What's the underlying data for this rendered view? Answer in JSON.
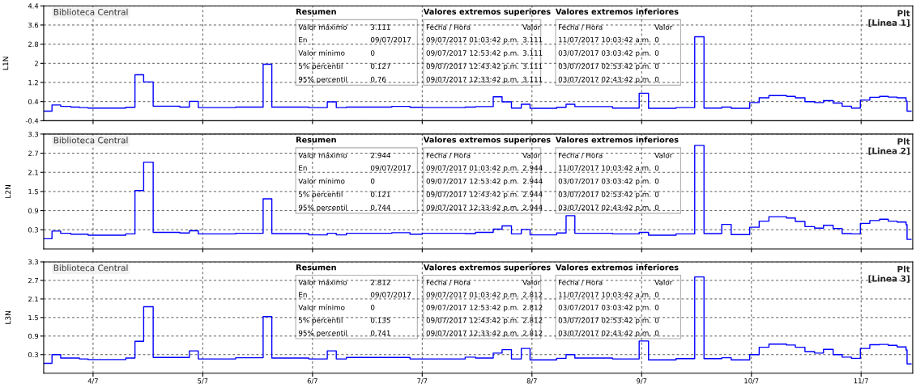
{
  "chart_data": [
    {
      "type": "step",
      "title": "Biblioteca Central",
      "subtitle": "Plt\n[Linea 1]",
      "ylabel": "L1N",
      "x": [
        "2017-07-03T13:12",
        "2017-07-03T15:01",
        "2017-07-03T16:55",
        "2017-07-03T19:08",
        "2017-07-03T21:01",
        "2017-07-03T22:55",
        "2017-07-04T07:09",
        "2017-07-04T09:10",
        "2017-07-04T11:04",
        "2017-07-04T13:09",
        "2017-07-04T18:58",
        "2017-07-04T21:04",
        "2017-07-04T23:01",
        "2017-07-05T07:12",
        "2017-07-05T13:12",
        "2017-07-05T15:06",
        "2017-07-05T23:11",
        "2017-07-06T03:14",
        "2017-07-06T05:12",
        "2017-07-06T07:25",
        "2017-07-06T17:21",
        "2017-07-06T21:20",
        "2017-07-07T00:00",
        "2017-07-07T09:24",
        "2017-07-07T11:40",
        "2017-07-07T15:32",
        "2017-07-07T17:28",
        "2017-07-07T19:31",
        "2017-07-07T21:40",
        "2017-07-07T23:35",
        "2017-07-08T05:24",
        "2017-07-08T07:28",
        "2017-07-08T09:23",
        "2017-07-08T17:38",
        "2017-07-08T23:27",
        "2017-07-09T01:30",
        "2017-07-09T07:31",
        "2017-07-09T11:36",
        "2017-07-09T13:38",
        "2017-07-09T17:31",
        "2017-07-09T19:35",
        "2017-07-09T23:38",
        "2017-07-10T01:42",
        "2017-07-10T03:50",
        "2017-07-10T07:42",
        "2017-07-10T09:37",
        "2017-07-10T11:43",
        "2017-07-10T13:49",
        "2017-07-10T15:46",
        "2017-07-10T17:53",
        "2017-07-10T19:51",
        "2017-07-10T21:53",
        "2017-07-10T23:50",
        "2017-07-11T01:54",
        "2017-07-11T04:02",
        "2017-07-11T05:57",
        "2017-07-11T07:53",
        "2017-07-11T09:50",
        "2017-07-11T10:03",
        "2017-07-11T10:55"
      ],
      "series": [
        {
          "color": "#0000ff",
          "values": [
            0.0,
            0.26,
            0.2,
            0.17,
            0.15,
            0.13,
            0.16,
            1.52,
            1.22,
            0.21,
            0.17,
            0.41,
            0.15,
            0.17,
            1.96,
            0.17,
            0.15,
            0.39,
            0.15,
            0.17,
            0.2,
            0.16,
            0.15,
            0.17,
            0.19,
            0.6,
            0.39,
            0.13,
            0.29,
            0.12,
            0.16,
            0.29,
            0.19,
            0.13,
            0.75,
            0.12,
            0.15,
            3.111,
            0.13,
            0.17,
            0.12,
            0.36,
            0.56,
            0.65,
            0.62,
            0.56,
            0.4,
            0.36,
            0.44,
            0.34,
            0.21,
            0.13,
            0.46,
            0.58,
            0.62,
            0.59,
            0.56,
            0.42,
            0.0,
            0.0
          ]
        }
      ],
      "xlim": [
        "2017-07-03T13:12",
        "2017-07-11T11:17"
      ],
      "xticks": [
        {
          "value": "2017-07-04",
          "label": null
        },
        {
          "value": "2017-07-05",
          "label": null
        },
        {
          "value": "2017-07-06",
          "label": null
        },
        {
          "value": "2017-07-07",
          "label": null
        },
        {
          "value": "2017-07-08",
          "label": null
        },
        {
          "value": "2017-07-09",
          "label": null
        },
        {
          "value": "2017-07-10",
          "label": null
        },
        {
          "value": "2017-07-11",
          "label": null
        }
      ],
      "ylim": [
        -0.4,
        4.4
      ],
      "yticks": [
        -0.4,
        0.4,
        1.2,
        2,
        2.8,
        3.6,
        4.4
      ],
      "grid": true,
      "line_style": "solid",
      "tick_labels": "y",
      "annotations": [
        "Resumen",
        "Valor máximo",
        "3.111",
        "En",
        "09/07/2017",
        "Valor mínimo",
        "0",
        "5% percentil",
        "0.127",
        "95% percentil",
        "0.76",
        "Valores extremos superiores",
        "Fecha / Hora",
        "Valor",
        "09/07/2017 01:03:42 p.m.",
        "3.111",
        "09/07/2017 12:53:42 p.m.",
        "3.111",
        "09/07/2017 12:43:42 p.m.",
        "3.111",
        "09/07/2017 12:33:42 p.m.",
        "3.111",
        "Valores extremos inferiores",
        "Fecha / Hora",
        "Valor",
        "11/07/2017 10:03:42 a.m.",
        "0",
        "03/07/2017 03:03:42 p.m.",
        "0",
        "03/07/2017 02:53:42 p.m.",
        "0",
        "03/07/2017 02:43:42 p.m.",
        "0"
      ]
    },
    {
      "type": "step",
      "title": "Biblioteca Central",
      "subtitle": "Plt\n[Linea 2]",
      "ylabel": "L2N",
      "x": [
        "2017-07-03T13:12",
        "2017-07-03T15:01",
        "2017-07-03T16:55",
        "2017-07-03T19:08",
        "2017-07-03T21:01",
        "2017-07-03T22:55",
        "2017-07-04T07:09",
        "2017-07-04T09:10",
        "2017-07-04T11:04",
        "2017-07-04T13:09",
        "2017-07-04T18:58",
        "2017-07-04T21:04",
        "2017-07-04T23:01",
        "2017-07-05T07:12",
        "2017-07-05T13:12",
        "2017-07-05T15:06",
        "2017-07-05T23:11",
        "2017-07-06T03:14",
        "2017-07-06T05:12",
        "2017-07-06T07:25",
        "2017-07-06T17:21",
        "2017-07-06T21:20",
        "2017-07-07T00:00",
        "2017-07-07T09:24",
        "2017-07-07T11:40",
        "2017-07-07T15:32",
        "2017-07-07T17:28",
        "2017-07-07T19:31",
        "2017-07-07T21:40",
        "2017-07-07T23:35",
        "2017-07-08T05:24",
        "2017-07-08T07:28",
        "2017-07-08T09:23",
        "2017-07-08T17:38",
        "2017-07-08T23:27",
        "2017-07-09T01:30",
        "2017-07-09T07:31",
        "2017-07-09T11:36",
        "2017-07-09T13:38",
        "2017-07-09T17:31",
        "2017-07-09T19:35",
        "2017-07-09T23:38",
        "2017-07-10T01:42",
        "2017-07-10T03:50",
        "2017-07-10T07:42",
        "2017-07-10T09:37",
        "2017-07-10T11:43",
        "2017-07-10T13:49",
        "2017-07-10T15:46",
        "2017-07-10T17:53",
        "2017-07-10T19:51",
        "2017-07-10T21:53",
        "2017-07-10T23:50",
        "2017-07-11T01:54",
        "2017-07-11T04:02",
        "2017-07-11T05:57",
        "2017-07-11T07:53",
        "2017-07-11T09:50",
        "2017-07-11T10:03",
        "2017-07-11T10:55"
      ],
      "series": [
        {
          "color": "#0000ff",
          "values": [
            0.02,
            0.26,
            0.19,
            0.16,
            0.16,
            0.13,
            0.17,
            1.53,
            2.42,
            0.22,
            0.2,
            0.27,
            0.17,
            0.19,
            1.27,
            0.18,
            0.14,
            0.19,
            0.14,
            0.19,
            0.21,
            0.16,
            0.19,
            0.18,
            0.22,
            0.32,
            0.42,
            0.17,
            0.31,
            0.14,
            0.2,
            0.74,
            0.19,
            0.17,
            0.22,
            0.13,
            0.17,
            2.944,
            0.18,
            0.47,
            0.15,
            0.38,
            0.57,
            0.71,
            0.67,
            0.56,
            0.4,
            0.35,
            0.44,
            0.34,
            0.18,
            0.17,
            0.5,
            0.59,
            0.63,
            0.57,
            0.54,
            0.46,
            0.0,
            0.0
          ]
        }
      ],
      "xlim": [
        "2017-07-03T13:12",
        "2017-07-11T11:17"
      ],
      "xticks": [
        {
          "value": "2017-07-04",
          "label": null
        },
        {
          "value": "2017-07-05",
          "label": null
        },
        {
          "value": "2017-07-06",
          "label": null
        },
        {
          "value": "2017-07-07",
          "label": null
        },
        {
          "value": "2017-07-08",
          "label": null
        },
        {
          "value": "2017-07-09",
          "label": null
        },
        {
          "value": "2017-07-10",
          "label": null
        },
        {
          "value": "2017-07-11",
          "label": null
        }
      ],
      "ylim": [
        -0.3,
        3.3
      ],
      "yticks": [
        0.3,
        0.9,
        1.5,
        2.1,
        2.7,
        3.3
      ],
      "grid": true,
      "line_style": "solid",
      "tick_labels": "y",
      "annotations": [
        "Resumen",
        "Valor máximo",
        "2.944",
        "En",
        "09/07/2017",
        "Valor mínimo",
        "0",
        "5% percentil",
        "0.121",
        "95% percentil",
        "0.744",
        "Valores extremos superiores",
        "Fecha / Hora",
        "Valor",
        "09/07/2017 01:03:42 p.m.",
        "2.944",
        "09/07/2017 12:53:42 p.m.",
        "2.944",
        "09/07/2017 12:43:42 p.m.",
        "2.944",
        "09/07/2017 12:33:42 p.m.",
        "2.944",
        "Valores extremos inferiores",
        "Fecha / Hora",
        "Valor",
        "11/07/2017 10:03:42 a.m.",
        "0",
        "03/07/2017 03:03:42 p.m.",
        "0",
        "03/07/2017 02:53:42 p.m.",
        "0",
        "03/07/2017 02:43:42 p.m.",
        "0"
      ]
    },
    {
      "type": "step",
      "title": "Biblioteca Central",
      "subtitle": "Plt\n[Linea 3]",
      "ylabel": "L3N",
      "x": [
        "2017-07-03T13:12",
        "2017-07-03T15:01",
        "2017-07-03T16:55",
        "2017-07-03T19:08",
        "2017-07-03T21:01",
        "2017-07-03T22:55",
        "2017-07-04T07:09",
        "2017-07-04T09:10",
        "2017-07-04T11:04",
        "2017-07-04T13:09",
        "2017-07-04T18:58",
        "2017-07-04T21:04",
        "2017-07-04T23:01",
        "2017-07-05T07:12",
        "2017-07-05T13:12",
        "2017-07-05T15:06",
        "2017-07-05T23:11",
        "2017-07-06T03:14",
        "2017-07-06T05:12",
        "2017-07-06T07:25",
        "2017-07-06T17:21",
        "2017-07-06T21:20",
        "2017-07-07T00:00",
        "2017-07-07T09:24",
        "2017-07-07T11:40",
        "2017-07-07T15:32",
        "2017-07-07T17:28",
        "2017-07-07T19:31",
        "2017-07-07T21:40",
        "2017-07-07T23:35",
        "2017-07-08T05:24",
        "2017-07-08T07:28",
        "2017-07-08T09:23",
        "2017-07-08T17:38",
        "2017-07-08T23:27",
        "2017-07-09T01:30",
        "2017-07-09T07:31",
        "2017-07-09T11:36",
        "2017-07-09T13:38",
        "2017-07-09T17:31",
        "2017-07-09T19:35",
        "2017-07-09T23:38",
        "2017-07-10T01:42",
        "2017-07-10T03:50",
        "2017-07-10T07:42",
        "2017-07-10T09:37",
        "2017-07-10T11:43",
        "2017-07-10T13:49",
        "2017-07-10T15:46",
        "2017-07-10T17:53",
        "2017-07-10T19:51",
        "2017-07-10T21:53",
        "2017-07-10T23:50",
        "2017-07-11T01:54",
        "2017-07-11T04:02",
        "2017-07-11T05:57",
        "2017-07-11T07:53",
        "2017-07-11T09:50",
        "2017-07-11T10:03",
        "2017-07-11T10:55"
      ],
      "series": [
        {
          "color": "#0000ff",
          "values": [
            0.02,
            0.3,
            0.19,
            0.19,
            0.16,
            0.14,
            0.19,
            0.73,
            1.85,
            0.21,
            0.21,
            0.42,
            0.16,
            0.2,
            1.53,
            0.19,
            0.16,
            0.42,
            0.16,
            0.21,
            0.21,
            0.16,
            0.16,
            0.22,
            0.19,
            0.35,
            0.46,
            0.16,
            0.5,
            0.13,
            0.18,
            0.3,
            0.19,
            0.16,
            0.74,
            0.13,
            0.17,
            2.812,
            0.17,
            0.2,
            0.13,
            0.3,
            0.54,
            0.64,
            0.61,
            0.54,
            0.4,
            0.35,
            0.47,
            0.3,
            0.22,
            0.18,
            0.5,
            0.62,
            0.63,
            0.6,
            0.55,
            0.45,
            0.0,
            0.0
          ]
        }
      ],
      "xlim": [
        "2017-07-03T13:12",
        "2017-07-11T11:17"
      ],
      "xticks": [
        {
          "value": "2017-07-04",
          "label": "4/7"
        },
        {
          "value": "2017-07-05",
          "label": "5/7"
        },
        {
          "value": "2017-07-06",
          "label": "6/7"
        },
        {
          "value": "2017-07-07",
          "label": "7/7"
        },
        {
          "value": "2017-07-08",
          "label": "8/7"
        },
        {
          "value": "2017-07-09",
          "label": "9/7"
        },
        {
          "value": "2017-07-10",
          "label": "10/7"
        },
        {
          "value": "2017-07-11",
          "label": "11/7"
        }
      ],
      "ylim": [
        -0.3,
        3.3
      ],
      "yticks": [
        0.3,
        0.9,
        1.5,
        2.1,
        2.7,
        3.3
      ],
      "grid": true,
      "line_style": "solid",
      "annotations": [
        "Resumen",
        "Valor máximo",
        "2.812",
        "En",
        "09/07/2017",
        "Valor mínimo",
        "0",
        "5% percentil",
        "0.135",
        "95% percentil",
        "0.741",
        "Valores extremos superiores",
        "Fecha / Hora",
        "Valor",
        "09/07/2017 01:03:42 p.m.",
        "2.812",
        "09/07/2017 12:53:42 p.m.",
        "2.812",
        "09/07/2017 12:43:42 p.m.",
        "2.812",
        "09/07/2017 12:33:42 p.m.",
        "2.812",
        "Valores extremos inferiores",
        "Fecha / Hora",
        "Valor",
        "11/07/2017 10:03:42 a.m.",
        "0",
        "03/07/2017 03:03:42 p.m.",
        "0",
        "03/07/2017 02:53:42 p.m.",
        "0",
        "03/07/2017 02:43:42 p.m.",
        "0"
      ]
    }
  ]
}
